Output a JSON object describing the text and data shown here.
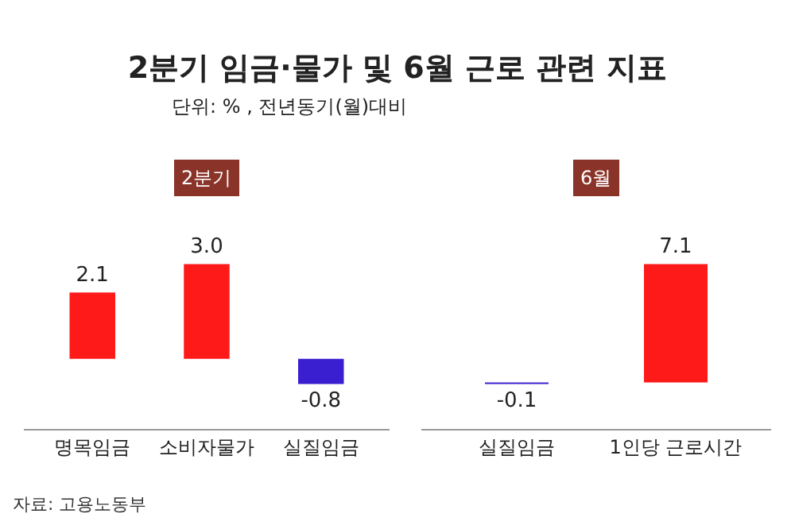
{
  "chart_data": [
    {
      "type": "bar",
      "title": "2분기 임금·물가 및 6월 근로 관련 지표",
      "subtitle": "단위: % , 전년동기(월)대비",
      "annotations": [
        "2분기",
        "자료: 고용노동부"
      ],
      "categories": [
        "명목임금",
        "소비자물가",
        "실질임금"
      ],
      "values": [
        2.1,
        3.0,
        -0.8
      ],
      "value_labels": [
        "2.1",
        "3.0",
        "-0.8"
      ],
      "colors": [
        "#ff1a1a",
        "#ff1a1a",
        "#3a1fd1"
      ],
      "tick_labels": "x",
      "grid": false
    },
    {
      "type": "bar",
      "annotations": [
        "6월"
      ],
      "categories": [
        "실질임금",
        "1인당 근로시간"
      ],
      "values": [
        -0.1,
        7.1
      ],
      "value_labels": [
        "-0.1",
        "7.1"
      ],
      "colors": [
        "#3a1fd1",
        "#ff1a1a"
      ],
      "tick_labels": "x",
      "grid": false
    }
  ]
}
